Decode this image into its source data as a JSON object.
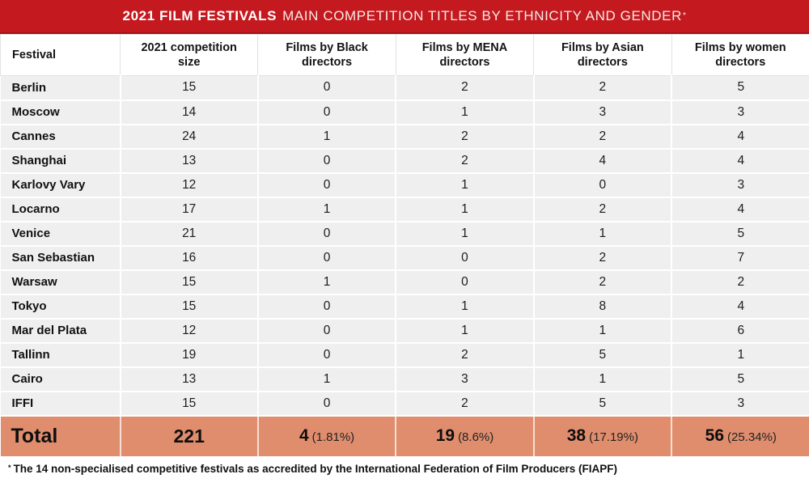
{
  "header": {
    "title_bold": "2021 FILM FESTIVALS",
    "title_regular": "MAIN COMPETITION TITLES BY ETHNICITY AND GENDER",
    "title_marker": "*",
    "background_color": "#c4191f",
    "border_color": "#a11419",
    "text_color": "#ffffff"
  },
  "table": {
    "columns": [
      "Festival",
      "2021 competition size",
      "Films by Black directors",
      "Films by MENA directors",
      "Films by Asian directors",
      "Films by women directors"
    ],
    "row_background": "#efefef",
    "rows": [
      {
        "festival": "Berlin",
        "values": [
          "15",
          "0",
          "2",
          "2",
          "5"
        ]
      },
      {
        "festival": "Moscow",
        "values": [
          "14",
          "0",
          "1",
          "3",
          "3"
        ]
      },
      {
        "festival": "Cannes",
        "values": [
          "24",
          "1",
          "2",
          "2",
          "4"
        ]
      },
      {
        "festival": "Shanghai",
        "values": [
          "13",
          "0",
          "2",
          "4",
          "4"
        ]
      },
      {
        "festival": "Karlovy Vary",
        "values": [
          "12",
          "0",
          "1",
          "0",
          "3"
        ]
      },
      {
        "festival": "Locarno",
        "values": [
          "17",
          "1",
          "1",
          "2",
          "4"
        ]
      },
      {
        "festival": "Venice",
        "values": [
          "21",
          "0",
          "1",
          "1",
          "5"
        ]
      },
      {
        "festival": "San Sebastian",
        "values": [
          "16",
          "0",
          "0",
          "2",
          "7"
        ]
      },
      {
        "festival": "Warsaw",
        "values": [
          "15",
          "1",
          "0",
          "2",
          "2"
        ]
      },
      {
        "festival": "Tokyo",
        "values": [
          "15",
          "0",
          "1",
          "8",
          "4"
        ]
      },
      {
        "festival": "Mar del Plata",
        "values": [
          "12",
          "0",
          "1",
          "1",
          "6"
        ]
      },
      {
        "festival": "Tallinn",
        "values": [
          "19",
          "0",
          "2",
          "5",
          "1"
        ]
      },
      {
        "festival": "Cairo",
        "values": [
          "13",
          "1",
          "3",
          "1",
          "5"
        ]
      },
      {
        "festival": "IFFI",
        "values": [
          "15",
          "0",
          "2",
          "5",
          "3"
        ]
      }
    ],
    "total": {
      "label": "Total",
      "competition_size": "221",
      "background_color": "#e08d6d",
      "cells": [
        {
          "value": "4",
          "pct": "(1.81%)"
        },
        {
          "value": "19",
          "pct": "(8.6%)"
        },
        {
          "value": "38",
          "pct": "(17.19%)"
        },
        {
          "value": "56",
          "pct": "(25.34%)"
        }
      ]
    }
  },
  "footnote": {
    "marker": "*",
    "text": "The 14 non-specialised competitive festivals as accredited by the International Federation of Film Producers (FIAPF)"
  },
  "chart_data": {
    "type": "table",
    "title": "2021 FILM FESTIVALS MAIN COMPETITION TITLES BY ETHNICITY AND GENDER*",
    "columns": [
      "Festival",
      "2021 competition size",
      "Films by Black directors",
      "Films by MENA directors",
      "Films by Asian directors",
      "Films by women directors"
    ],
    "categories": [
      "Berlin",
      "Moscow",
      "Cannes",
      "Shanghai",
      "Karlovy Vary",
      "Locarno",
      "Venice",
      "San Sebastian",
      "Warsaw",
      "Tokyo",
      "Mar del Plata",
      "Tallinn",
      "Cairo",
      "IFFI"
    ],
    "series": [
      {
        "name": "2021 competition size",
        "values": [
          15,
          14,
          24,
          13,
          12,
          17,
          21,
          16,
          15,
          15,
          12,
          19,
          13,
          15
        ],
        "total": 221
      },
      {
        "name": "Films by Black directors",
        "values": [
          0,
          0,
          1,
          0,
          0,
          1,
          0,
          0,
          1,
          0,
          0,
          0,
          1,
          0
        ],
        "total": 4,
        "total_pct": "1.81%"
      },
      {
        "name": "Films by MENA directors",
        "values": [
          2,
          1,
          2,
          2,
          1,
          1,
          1,
          0,
          0,
          1,
          1,
          2,
          3,
          2
        ],
        "total": 19,
        "total_pct": "8.6%"
      },
      {
        "name": "Films by Asian directors",
        "values": [
          2,
          3,
          2,
          4,
          0,
          2,
          1,
          2,
          2,
          8,
          1,
          5,
          1,
          5
        ],
        "total": 38,
        "total_pct": "17.19%"
      },
      {
        "name": "Films by women directors",
        "values": [
          5,
          3,
          4,
          4,
          3,
          4,
          5,
          7,
          2,
          4,
          6,
          1,
          5,
          3
        ],
        "total": 56,
        "total_pct": "25.34%"
      }
    ],
    "footnote": "* The 14 non-specialised competitive festivals as accredited by the International Federation of Film Producers (FIAPF)"
  }
}
